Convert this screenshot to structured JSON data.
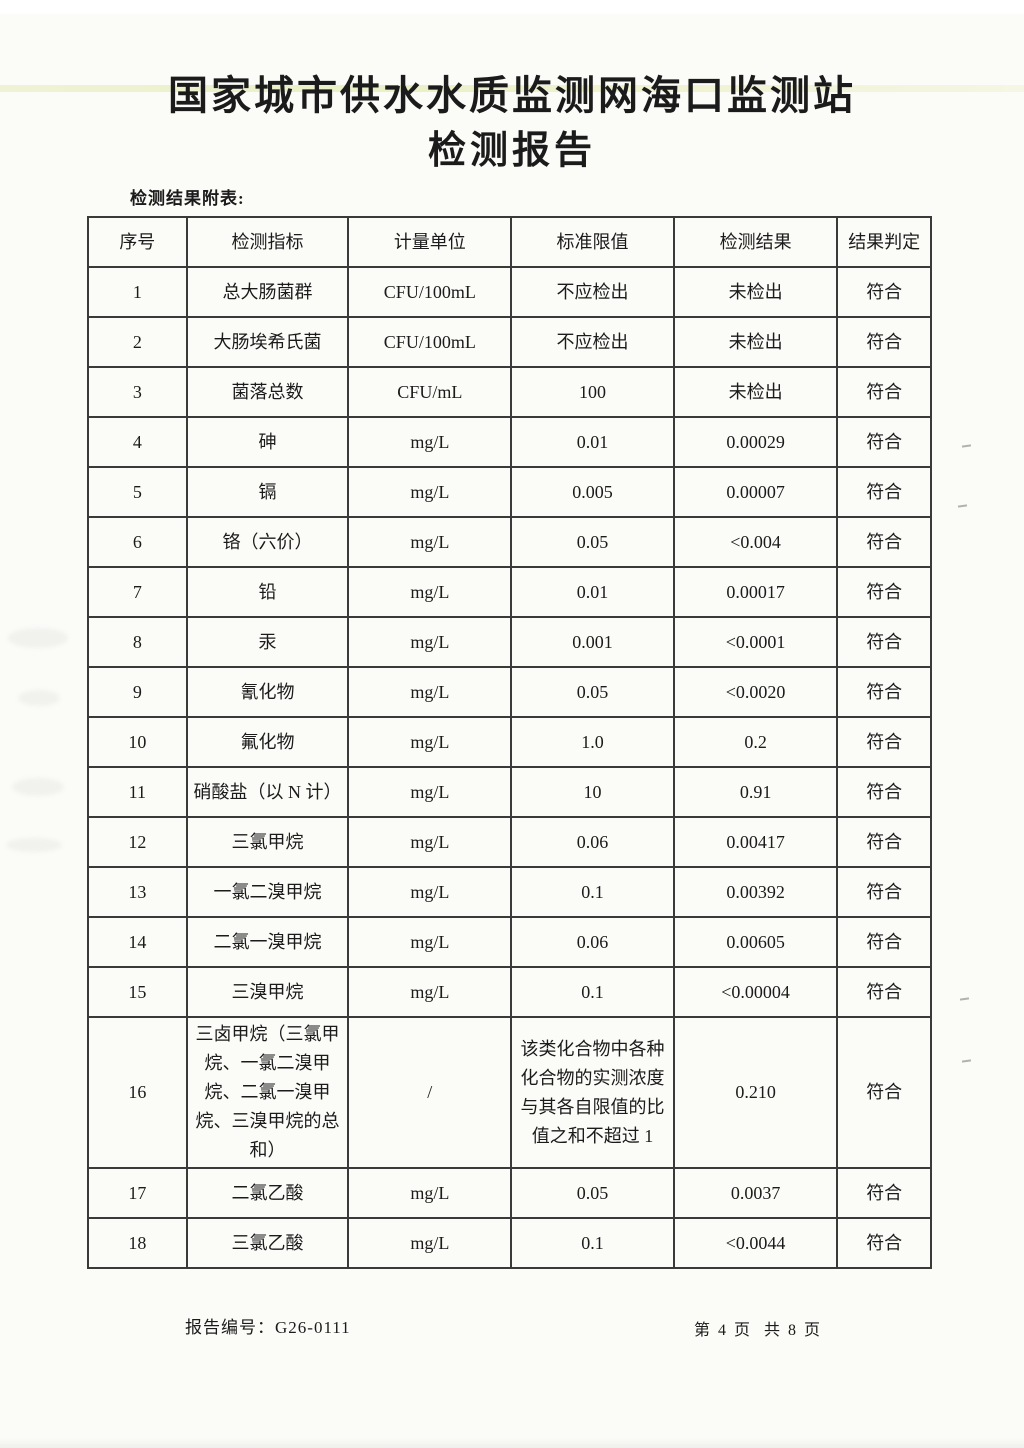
{
  "page": {
    "title_line1": "国家城市供水水质监测网海口监测站",
    "title_line2": "检测报告",
    "table_caption": "检测结果附表:",
    "report_number_label": "报告编号：",
    "report_number": "G26-0111",
    "page_indicator": "第 4 页  共 8 页"
  },
  "table": {
    "headers": [
      "序号",
      "检测指标",
      "计量单位",
      "标准限值",
      "检测结果",
      "结果判定"
    ],
    "rows": [
      {
        "no": "1",
        "indicator": "总大肠菌群",
        "unit": "CFU/100mL",
        "limit": "不应检出",
        "result": "未检出",
        "judgment": "符合"
      },
      {
        "no": "2",
        "indicator": "大肠埃希氏菌",
        "unit": "CFU/100mL",
        "limit": "不应检出",
        "result": "未检出",
        "judgment": "符合"
      },
      {
        "no": "3",
        "indicator": "菌落总数",
        "unit": "CFU/mL",
        "limit": "100",
        "result": "未检出",
        "judgment": "符合"
      },
      {
        "no": "4",
        "indicator": "砷",
        "unit": "mg/L",
        "limit": "0.01",
        "result": "0.00029",
        "judgment": "符合"
      },
      {
        "no": "5",
        "indicator": "镉",
        "unit": "mg/L",
        "limit": "0.005",
        "result": "0.00007",
        "judgment": "符合"
      },
      {
        "no": "6",
        "indicator": "铬（六价）",
        "unit": "mg/L",
        "limit": "0.05",
        "result": "<0.004",
        "judgment": "符合"
      },
      {
        "no": "7",
        "indicator": "铅",
        "unit": "mg/L",
        "limit": "0.01",
        "result": "0.00017",
        "judgment": "符合"
      },
      {
        "no": "8",
        "indicator": "汞",
        "unit": "mg/L",
        "limit": "0.001",
        "result": "<0.0001",
        "judgment": "符合"
      },
      {
        "no": "9",
        "indicator": "氰化物",
        "unit": "mg/L",
        "limit": "0.05",
        "result": "<0.0020",
        "judgment": "符合"
      },
      {
        "no": "10",
        "indicator": "氟化物",
        "unit": "mg/L",
        "limit": "1.0",
        "result": "0.2",
        "judgment": "符合"
      },
      {
        "no": "11",
        "indicator": "硝酸盐（以 N 计）",
        "unit": "mg/L",
        "limit": "10",
        "result": "0.91",
        "judgment": "符合"
      },
      {
        "no": "12",
        "indicator": "三氯甲烷",
        "unit": "mg/L",
        "limit": "0.06",
        "result": "0.00417",
        "judgment": "符合"
      },
      {
        "no": "13",
        "indicator": "一氯二溴甲烷",
        "unit": "mg/L",
        "limit": "0.1",
        "result": "0.00392",
        "judgment": "符合"
      },
      {
        "no": "14",
        "indicator": "二氯一溴甲烷",
        "unit": "mg/L",
        "limit": "0.06",
        "result": "0.00605",
        "judgment": "符合"
      },
      {
        "no": "15",
        "indicator": "三溴甲烷",
        "unit": "mg/L",
        "limit": "0.1",
        "result": "<0.00004",
        "judgment": "符合"
      },
      {
        "no": "16",
        "indicator": "三卤甲烷（三氯甲烷、一氯二溴甲烷、二氯一溴甲烷、三溴甲烷的总和）",
        "unit": "/",
        "limit": "该类化合物中各种化合物的实测浓度与其各自限值的比值之和不超过 1",
        "result": "0.210",
        "judgment": "符合"
      },
      {
        "no": "17",
        "indicator": "二氯乙酸",
        "unit": "mg/L",
        "limit": "0.05",
        "result": "0.0037",
        "judgment": "符合"
      },
      {
        "no": "18",
        "indicator": "三氯乙酸",
        "unit": "mg/L",
        "limit": "0.1",
        "result": "<0.0044",
        "judgment": "符合"
      }
    ]
  }
}
